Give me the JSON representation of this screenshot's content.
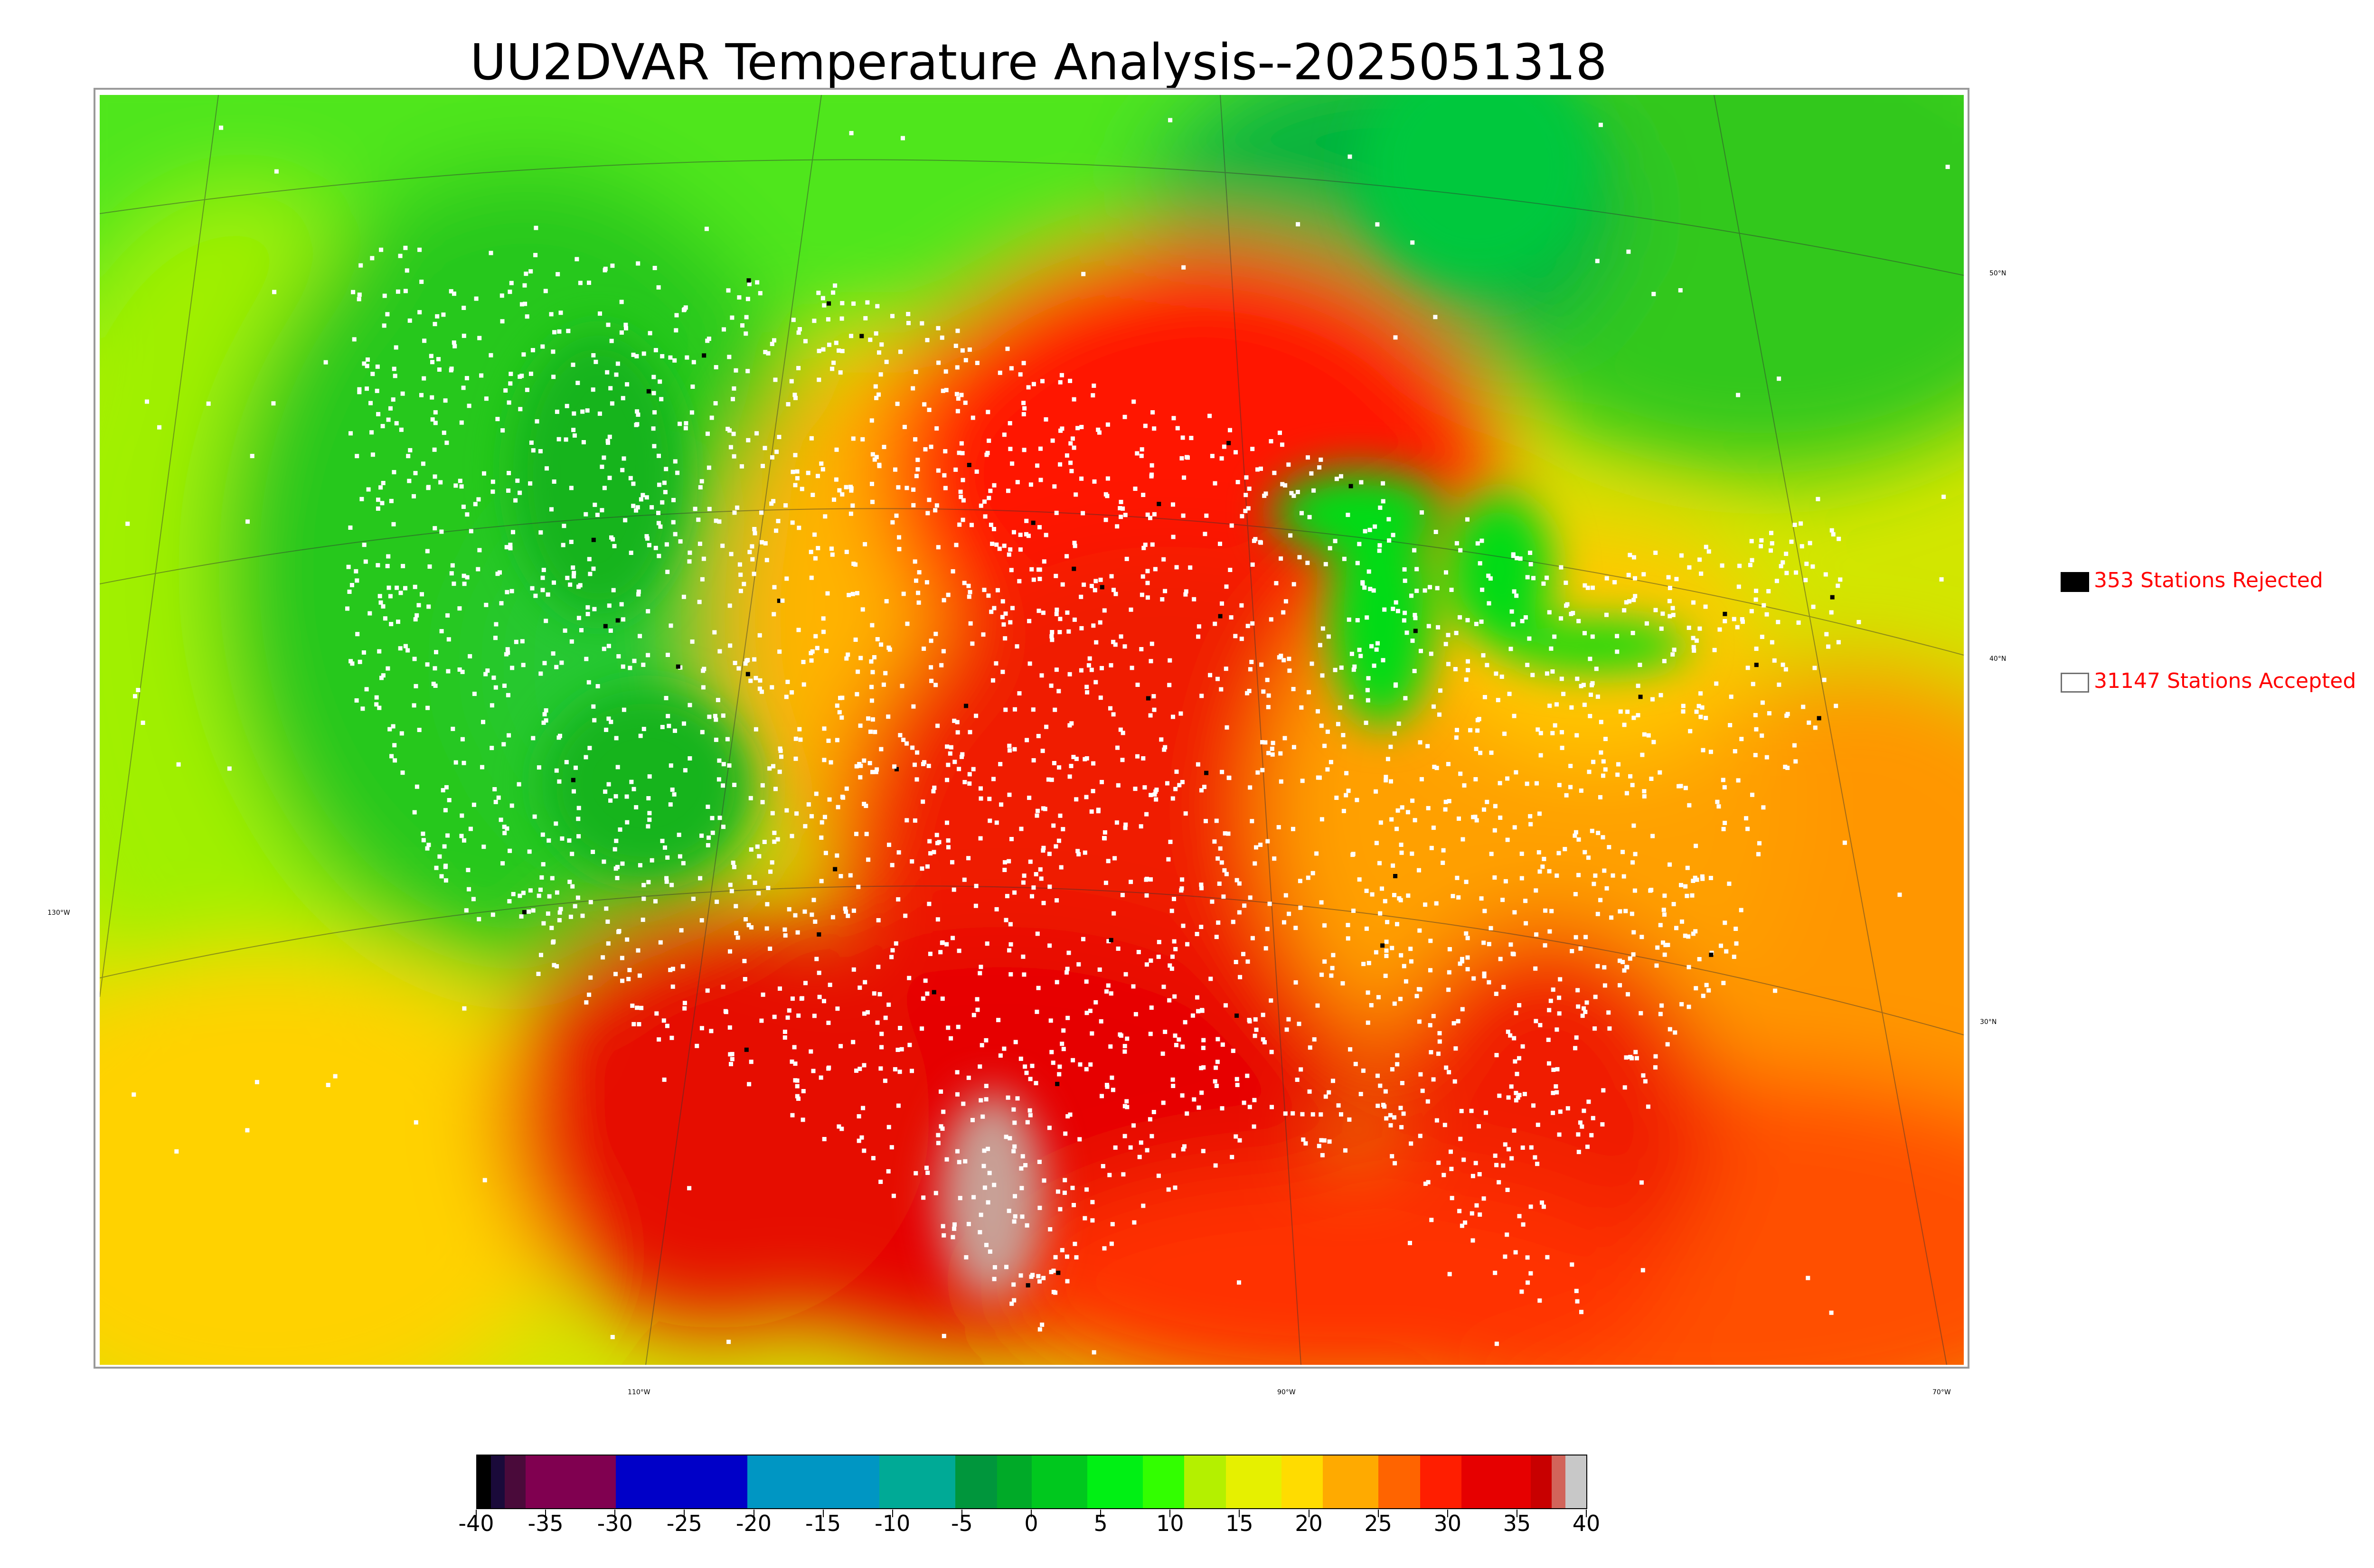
{
  "title": "UU2DVAR Temperature Analysis--2025051318",
  "legend": {
    "rejected": {
      "label": "353 Stations Rejected",
      "color": "#000000"
    },
    "accepted": {
      "label": "31147 Stations Accepted",
      "color": "#ffffff"
    }
  },
  "graticule": {
    "lon_labels": [
      "130°W",
      "110°W",
      "90°W",
      "70°W"
    ],
    "lat_labels": [
      "50°N",
      "40°N",
      "30°N"
    ]
  },
  "colorbar": {
    "tick_labels": [
      "-40",
      "-35",
      "-30",
      "-25",
      "-20",
      "-15",
      "-10",
      "-5",
      "0",
      "5",
      "10",
      "15",
      "20",
      "25",
      "30",
      "35",
      "40"
    ],
    "range": [
      -40,
      40
    ],
    "colors": [
      {
        "from": -40,
        "to": -39,
        "color": "#000000"
      },
      {
        "from": -39,
        "to": -38,
        "color": "#1a0a3a"
      },
      {
        "from": -38,
        "to": -36.5,
        "color": "#4a0a3a"
      },
      {
        "from": -36.5,
        "to": -30,
        "color": "#800050"
      },
      {
        "from": -30,
        "to": -20.5,
        "color": "#0000c8"
      },
      {
        "from": -20.5,
        "to": -11,
        "color": "#0096c3"
      },
      {
        "from": -11,
        "to": -5.5,
        "color": "#00aa96"
      },
      {
        "from": -5.5,
        "to": -2.5,
        "color": "#00963c"
      },
      {
        "from": -2.5,
        "to": 0,
        "color": "#00aa28"
      },
      {
        "from": 0,
        "to": 4,
        "color": "#00c81e"
      },
      {
        "from": 4,
        "to": 8,
        "color": "#00f014"
      },
      {
        "from": 8,
        "to": 11,
        "color": "#32ff00"
      },
      {
        "from": 11,
        "to": 14,
        "color": "#b4f000"
      },
      {
        "from": 14,
        "to": 18,
        "color": "#e6f000"
      },
      {
        "from": 18,
        "to": 21,
        "color": "#ffdc00"
      },
      {
        "from": 21,
        "to": 25,
        "color": "#ffaa00"
      },
      {
        "from": 25,
        "to": 28,
        "color": "#ff6400"
      },
      {
        "from": 28,
        "to": 31,
        "color": "#ff1e00"
      },
      {
        "from": 31,
        "to": 36,
        "color": "#e60000"
      },
      {
        "from": 36,
        "to": 37.5,
        "color": "#c80000"
      },
      {
        "from": 37.5,
        "to": 38.5,
        "color": "#d2645a"
      },
      {
        "from": 38.5,
        "to": 40,
        "color": "#c8c8c8"
      }
    ]
  },
  "field_colors": {
    "cold_west": "#32d21e",
    "mild": "#b4f000",
    "warm": "#ffc800",
    "hot": "#ff3200",
    "hottest": "#e10000",
    "high_terrain": "#c8a096",
    "ocean_north": "#78ff00",
    "lakes": "#00dc14"
  }
}
